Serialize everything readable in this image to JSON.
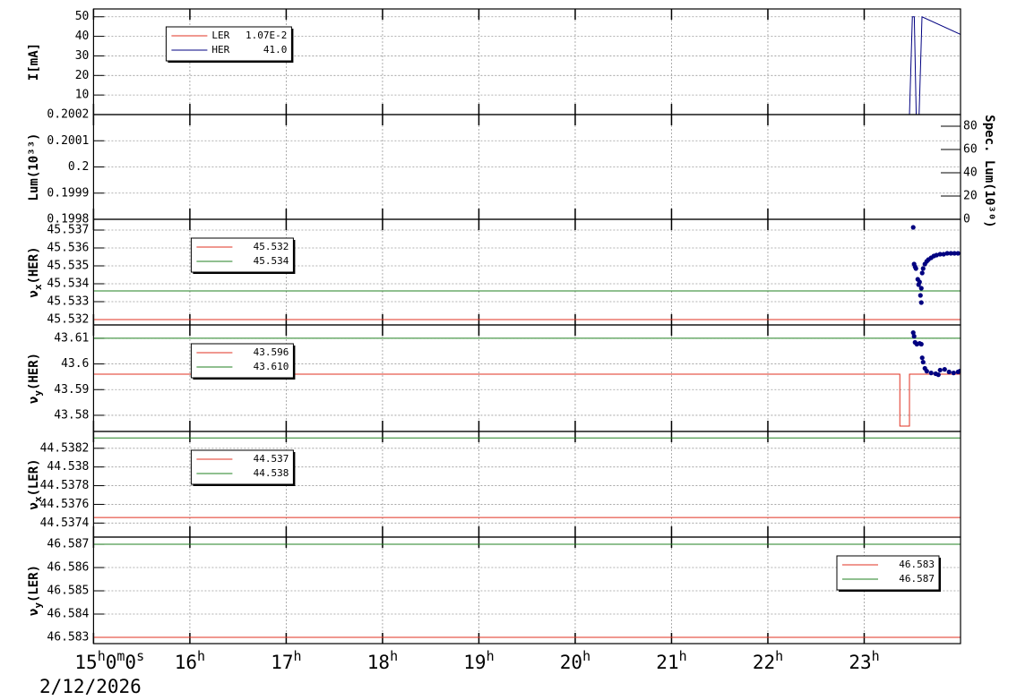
{
  "x_axis": {
    "xlim": [
      15,
      24
    ],
    "xticks": [
      {
        "value": 15,
        "label": "15h0m0s"
      },
      {
        "value": 16,
        "label": "16h"
      },
      {
        "value": 17,
        "label": "17h"
      },
      {
        "value": 18,
        "label": "18h"
      },
      {
        "value": 19,
        "label": "19h"
      },
      {
        "value": 20,
        "label": "20h"
      },
      {
        "value": 21,
        "label": "21h"
      },
      {
        "value": 22,
        "label": "22h"
      },
      {
        "value": 23,
        "label": "23h"
      }
    ],
    "date": "2/12/2026",
    "grid": true
  },
  "chart_data": [
    {
      "type": "line",
      "ylabel": "I[mA]",
      "ylim": [
        0,
        54
      ],
      "yticks": [
        10,
        20,
        30,
        40,
        50
      ],
      "legend_corner": "upper left",
      "series": [
        {
          "name": "LER",
          "legend_value": "1.07E-2",
          "color": "#e03020",
          "x": [
            15,
            24
          ],
          "values": [
            0.0107,
            0.0107
          ]
        },
        {
          "name": "HER",
          "legend_value": "41.0",
          "color": "#000080",
          "x": [
            15,
            23.47,
            23.5,
            23.52,
            23.54,
            23.57,
            23.6,
            24
          ],
          "values": [
            0,
            0,
            50,
            50,
            0,
            0,
            50,
            41
          ]
        }
      ]
    },
    {
      "type": "line",
      "ylabel": "Lum(10³³)",
      "ylim": [
        0.1998,
        0.2002
      ],
      "yticks": [
        0.1998,
        0.1999,
        0.2,
        0.2001,
        0.2002
      ],
      "y2label": "Spec. Lum(10³⁰)",
      "y2lim": [
        0,
        90
      ],
      "y2ticks": [
        0,
        20,
        40,
        60,
        80
      ],
      "series": []
    },
    {
      "type": "line",
      "ylabel": "νx(HER)",
      "ylim": [
        45.5317,
        45.5376
      ],
      "yticks": [
        45.532,
        45.533,
        45.534,
        45.535,
        45.536,
        45.537
      ],
      "legend_corner": "upper left",
      "series": [
        {
          "legend_value": "45.532",
          "color": "#e03020",
          "x": [
            15,
            24
          ],
          "values": [
            45.532,
            45.532
          ]
        },
        {
          "legend_value": "45.534",
          "color": "#208020",
          "x": [
            15,
            24
          ],
          "values": [
            45.5336,
            45.5336
          ]
        },
        {
          "color": "#000080",
          "marker": true,
          "x": [
            23.509,
            23.518,
            23.528,
            23.537,
            23.556,
            23.565,
            23.575,
            23.584,
            23.593,
            23.593,
            23.602,
            23.612,
            23.63,
            23.649,
            23.667,
            23.695,
            23.723,
            23.751,
            23.788,
            23.825,
            23.862,
            23.9,
            23.937,
            23.974
          ],
          "values": [
            45.53715,
            45.5351,
            45.53495,
            45.53485,
            45.53425,
            45.53395,
            45.5341,
            45.53335,
            45.53295,
            45.53375,
            45.5346,
            45.53485,
            45.5351,
            45.53525,
            45.53535,
            45.53545,
            45.53555,
            45.5356,
            45.53565,
            45.53565,
            45.5357,
            45.5357,
            45.5357,
            45.5357
          ]
        }
      ]
    },
    {
      "type": "line",
      "ylabel": "νy(HER)",
      "ylim": [
        43.5737,
        43.6152
      ],
      "yticks": [
        43.58,
        43.59,
        43.6,
        43.61
      ],
      "legend_corner": "upper left",
      "series": [
        {
          "legend_value": "43.596",
          "color": "#e03020",
          "x": [
            15,
            23.37,
            23.37,
            23.47,
            23.47,
            24
          ],
          "values": [
            43.596,
            43.596,
            43.5758,
            43.5758,
            43.596,
            43.596
          ]
        },
        {
          "legend_value": "43.610",
          "color": "#208020",
          "x": [
            15,
            24
          ],
          "values": [
            43.61,
            43.61
          ]
        },
        {
          "color": "#000080",
          "marker": true,
          "x": [
            23.509,
            23.518,
            23.528,
            23.546,
            23.575,
            23.593,
            23.602,
            23.612,
            23.63,
            23.649,
            23.695,
            23.742,
            23.77,
            23.788,
            23.835,
            23.881,
            23.928,
            23.974,
            23.993
          ],
          "values": [
            43.6122,
            43.6108,
            43.6084,
            43.6077,
            43.608,
            43.6077,
            43.6024,
            43.6007,
            43.5983,
            43.5972,
            43.5965,
            43.5962,
            43.5958,
            43.5976,
            43.5979,
            43.5969,
            43.5965,
            43.5969,
            43.5972
          ]
        }
      ]
    },
    {
      "type": "line",
      "ylabel": "νx(LER)",
      "ylim": [
        44.53725,
        44.53838
      ],
      "yticks": [
        44.5374,
        44.5376,
        44.5378,
        44.538,
        44.5382
      ],
      "legend_corner": "upper left",
      "series": [
        {
          "legend_value": "44.537",
          "color": "#e03020",
          "x": [
            15,
            24
          ],
          "values": [
            44.53746,
            44.53746
          ]
        },
        {
          "legend_value": "44.538",
          "color": "#208020",
          "x": [
            15,
            24
          ],
          "values": [
            44.53831,
            44.53831
          ]
        }
      ]
    },
    {
      "type": "line",
      "ylabel": "νy(LER)",
      "ylim": [
        46.58273,
        46.58731
      ],
      "yticks": [
        46.583,
        46.584,
        46.585,
        46.586,
        46.587
      ],
      "legend_corner": "upper right",
      "series": [
        {
          "legend_value": "46.583",
          "color": "#e03020",
          "x": [
            15,
            24
          ],
          "values": [
            46.583,
            46.583
          ]
        },
        {
          "legend_value": "46.587",
          "color": "#208020",
          "x": [
            15,
            24
          ],
          "values": [
            46.587,
            46.587
          ]
        }
      ]
    }
  ]
}
